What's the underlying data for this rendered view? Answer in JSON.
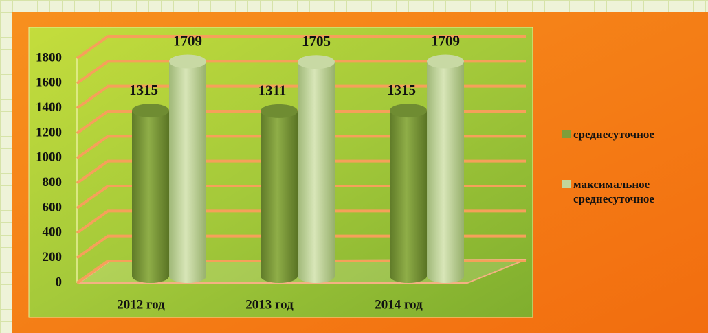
{
  "chart_data": {
    "type": "bar3d",
    "categories": [
      "2012 год",
      "2013 год",
      "2014 год"
    ],
    "series": [
      {
        "name": "среднесуточное",
        "color": "#7f9e3a",
        "values": [
          1315,
          1311,
          1315
        ]
      },
      {
        "name": "максимальное среднесуточное",
        "color": "#c3d69b",
        "values": [
          1709,
          1705,
          1709
        ]
      }
    ],
    "ylim": [
      0,
      1800
    ],
    "yticks": [
      0,
      200,
      400,
      600,
      800,
      1000,
      1200,
      1400,
      1600,
      1800
    ],
    "grid": true,
    "legend": "right"
  }
}
